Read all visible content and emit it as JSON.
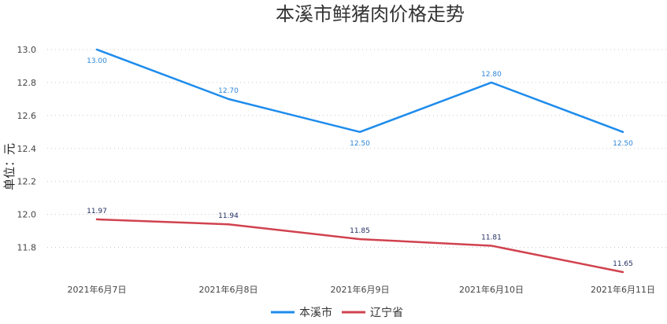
{
  "chart_data": {
    "type": "line",
    "title": "本溪市鲜猪肉价格走势",
    "xlabel": "",
    "ylabel": "单位：元",
    "categories": [
      "2021年6月7日",
      "2021年6月8日",
      "2021年6月9日",
      "2021年6月10日",
      "2021年6月11日"
    ],
    "ylim": [
      11.65,
      13.0
    ],
    "yticks": [
      11.8,
      12.0,
      12.2,
      12.4,
      12.6,
      12.8,
      13.0
    ],
    "ytick_labels": [
      "11.8",
      "12.0",
      "12.2",
      "12.4",
      "12.6",
      "12.8",
      "13.0"
    ],
    "grid": true,
    "legend_position": "bottom-center",
    "series": [
      {
        "name": "本溪市",
        "color": "#1e8cec",
        "label_color": "#2e86d8",
        "values": [
          13.0,
          12.7,
          12.5,
          12.8,
          12.5
        ],
        "labels": [
          "13.00",
          "12.70",
          "12.50",
          "12.80",
          "12.50"
        ],
        "label_side": [
          "below",
          "above",
          "below",
          "above",
          "below"
        ]
      },
      {
        "name": "辽宁省",
        "color": "#d1424f",
        "label_color": "#1f2a5c",
        "values": [
          11.97,
          11.94,
          11.85,
          11.81,
          11.65
        ],
        "labels": [
          "11.97",
          "11.94",
          "11.85",
          "11.81",
          "11.65"
        ],
        "label_side": [
          "above",
          "above",
          "above",
          "above",
          "above"
        ]
      }
    ]
  }
}
